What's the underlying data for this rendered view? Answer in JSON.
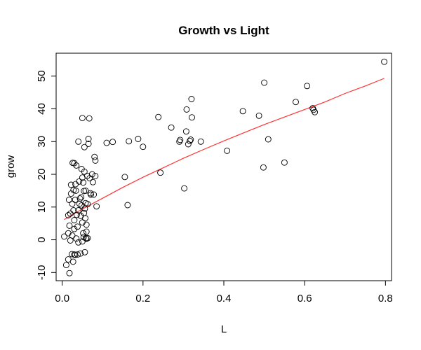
{
  "chart_data": {
    "type": "scatter",
    "title": "Growth vs Light",
    "xlabel": "L",
    "ylabel": "grow",
    "xlim": [
      -0.015,
      0.815
    ],
    "ylim": [
      -12.5,
      57
    ],
    "xticks": [
      0.0,
      0.2,
      0.4,
      0.6,
      0.8
    ],
    "xtick_labels": [
      "0.0",
      "0.2",
      "0.4",
      "0.6",
      "0.8"
    ],
    "yticks": [
      -10,
      0,
      10,
      20,
      30,
      40,
      50
    ],
    "ytick_labels": [
      "-10",
      "0",
      "10",
      "20",
      "30",
      "40",
      "50"
    ],
    "grid": false,
    "legend": "none",
    "colors": {
      "points": "#000000",
      "fit_line": "#ff3333",
      "axes": "#000000"
    },
    "series": [
      {
        "kind": "points",
        "marker": "open-circle",
        "points": [
          [
            0.005,
            1.0
          ],
          [
            0.01,
            -7.7
          ],
          [
            0.015,
            -6.0
          ],
          [
            0.015,
            2.0
          ],
          [
            0.015,
            7.5
          ],
          [
            0.017,
            12.2
          ],
          [
            0.018,
            4.3
          ],
          [
            0.018,
            -10.2
          ],
          [
            0.02,
            -0.2
          ],
          [
            0.02,
            8.0
          ],
          [
            0.022,
            14.1
          ],
          [
            0.022,
            16.8
          ],
          [
            0.024,
            -4.4
          ],
          [
            0.025,
            1.3
          ],
          [
            0.025,
            11.0
          ],
          [
            0.026,
            23.5
          ],
          [
            0.027,
            -6.7
          ],
          [
            0.028,
            9.0
          ],
          [
            0.028,
            15.2
          ],
          [
            0.03,
            -4.5
          ],
          [
            0.03,
            3.3
          ],
          [
            0.03,
            6.0
          ],
          [
            0.03,
            23.4
          ],
          [
            0.032,
            12.2
          ],
          [
            0.032,
            -4.6
          ],
          [
            0.033,
            17.0
          ],
          [
            0.034,
            15.0
          ],
          [
            0.035,
            22.7
          ],
          [
            0.035,
            0.4
          ],
          [
            0.036,
            7.6
          ],
          [
            0.038,
            -4.5
          ],
          [
            0.038,
            4.0
          ],
          [
            0.04,
            9.0
          ],
          [
            0.04,
            -0.8
          ],
          [
            0.04,
            30.0
          ],
          [
            0.042,
            17.8
          ],
          [
            0.043,
            11.0
          ],
          [
            0.044,
            12.6
          ],
          [
            0.045,
            -4.2
          ],
          [
            0.046,
            7.3
          ],
          [
            0.047,
            13.0
          ],
          [
            0.048,
            10.5
          ],
          [
            0.048,
            21.6
          ],
          [
            0.05,
            5.3
          ],
          [
            0.05,
            19.0
          ],
          [
            0.05,
            -0.5
          ],
          [
            0.05,
            37.2
          ],
          [
            0.052,
            2.0
          ],
          [
            0.052,
            17.5
          ],
          [
            0.053,
            0.8
          ],
          [
            0.054,
            14.9
          ],
          [
            0.054,
            8.2
          ],
          [
            0.055,
            20.8
          ],
          [
            0.055,
            28.3
          ],
          [
            0.056,
            9.5
          ],
          [
            0.056,
            -3.8
          ],
          [
            0.057,
            6.6
          ],
          [
            0.058,
            15.0
          ],
          [
            0.058,
            11.2
          ],
          [
            0.059,
            0.5
          ],
          [
            0.06,
            4.6
          ],
          [
            0.06,
            2.5
          ],
          [
            0.06,
            0.3
          ],
          [
            0.062,
            19.5
          ],
          [
            0.063,
            10.9
          ],
          [
            0.063,
            0.5
          ],
          [
            0.065,
            29.3
          ],
          [
            0.065,
            30.8
          ],
          [
            0.067,
            37.1
          ],
          [
            0.068,
            18.8
          ],
          [
            0.07,
            14.2
          ],
          [
            0.071,
            13.8
          ],
          [
            0.074,
            20.0
          ],
          [
            0.076,
            17.6
          ],
          [
            0.078,
            13.8
          ],
          [
            0.08,
            25.3
          ],
          [
            0.082,
            19.5
          ],
          [
            0.082,
            24.2
          ],
          [
            0.085,
            10.2
          ],
          [
            0.11,
            29.6
          ],
          [
            0.125,
            29.9
          ],
          [
            0.155,
            19.2
          ],
          [
            0.162,
            10.6
          ],
          [
            0.165,
            30.1
          ],
          [
            0.188,
            30.8
          ],
          [
            0.2,
            28.4
          ],
          [
            0.238,
            37.5
          ],
          [
            0.243,
            20.5
          ],
          [
            0.27,
            34.3
          ],
          [
            0.29,
            30.0
          ],
          [
            0.292,
            30.5
          ],
          [
            0.302,
            15.7
          ],
          [
            0.307,
            33.1
          ],
          [
            0.308,
            39.8
          ],
          [
            0.312,
            29.2
          ],
          [
            0.316,
            30.2
          ],
          [
            0.318,
            30.6
          ],
          [
            0.32,
            43.0
          ],
          [
            0.321,
            37.4
          ],
          [
            0.343,
            30.0
          ],
          [
            0.408,
            27.2
          ],
          [
            0.447,
            39.3
          ],
          [
            0.487,
            37.9
          ],
          [
            0.498,
            22.1
          ],
          [
            0.5,
            48.0
          ],
          [
            0.51,
            30.7
          ],
          [
            0.55,
            23.6
          ],
          [
            0.578,
            42.1
          ],
          [
            0.606,
            47.0
          ],
          [
            0.62,
            40.2
          ],
          [
            0.622,
            39.7
          ],
          [
            0.625,
            39.0
          ],
          [
            0.797,
            54.4
          ]
        ]
      },
      {
        "kind": "fit-line",
        "points": [
          [
            0.005,
            6.2
          ],
          [
            0.05,
            9.4
          ],
          [
            0.1,
            12.7
          ],
          [
            0.15,
            16.0
          ],
          [
            0.2,
            19.1
          ],
          [
            0.25,
            22.0
          ],
          [
            0.3,
            24.9
          ],
          [
            0.35,
            27.6
          ],
          [
            0.4,
            30.2
          ],
          [
            0.45,
            32.7
          ],
          [
            0.5,
            35.2
          ],
          [
            0.55,
            37.5
          ],
          [
            0.6,
            39.8
          ],
          [
            0.65,
            42.1
          ],
          [
            0.7,
            44.7
          ],
          [
            0.75,
            47.0
          ],
          [
            0.797,
            49.3
          ]
        ]
      }
    ]
  }
}
